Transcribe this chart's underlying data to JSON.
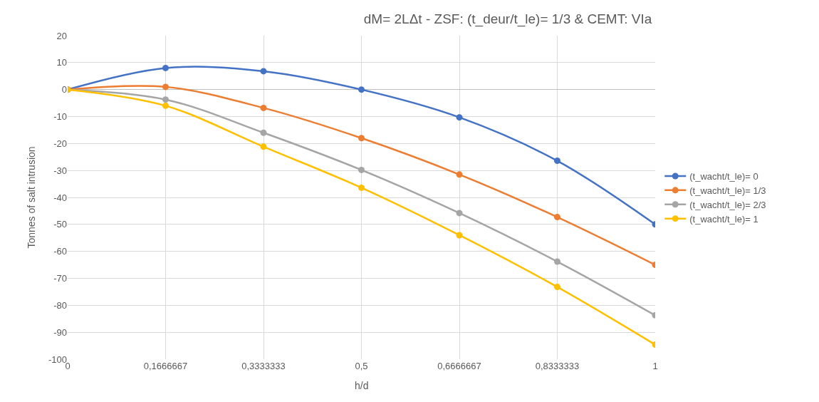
{
  "chart_data": {
    "type": "line",
    "title": "dM= 2LΔt - ZSF: (t_deur/t_le)= 1/3 & CEMT: VIa",
    "xlabel": "h/d",
    "ylabel": "Tonnes of salt intrusion",
    "categories": [
      "0",
      "0,1666667",
      "0,3333333",
      "0,5",
      "0,6666667",
      "0,8333333",
      "1"
    ],
    "series": [
      {
        "name": "(t_wacht/t_le)= 0",
        "color": "#4472c4",
        "values": [
          0,
          8,
          6.8,
          0,
          -10.3,
          -26.4,
          -50
        ]
      },
      {
        "name": "(t_wacht/t_le)= 1/3",
        "color": "#ed7d31",
        "values": [
          0,
          1,
          -6.8,
          -18,
          -31.5,
          -47.3,
          -65
        ]
      },
      {
        "name": "(t_wacht/t_le)= 2/3",
        "color": "#a5a5a5",
        "values": [
          0,
          -3.7,
          -16,
          -29.8,
          -45.8,
          -63.8,
          -83.7
        ]
      },
      {
        "name": "(t_wacht/t_le)= 1",
        "color": "#ffc000",
        "values": [
          0,
          -6,
          -21.2,
          -36.4,
          -54,
          -73.2,
          -94.6
        ]
      }
    ],
    "ylim": [
      -100,
      20
    ],
    "yticks": [
      -100,
      -90,
      -80,
      -70,
      -60,
      -50,
      -40,
      -30,
      -20,
      -10,
      0,
      10,
      20
    ],
    "grid": true,
    "legend": "right",
    "marker": "circle",
    "line_style": "solid"
  }
}
